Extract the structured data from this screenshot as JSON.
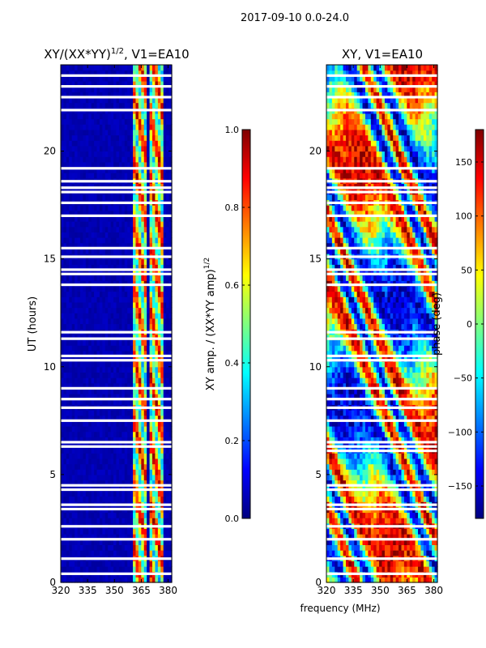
{
  "figure_title": "2017-09-10 0.0-24.0",
  "colors": {
    "jet_stops": [
      "#00007f",
      "#0000ff",
      "#007fff",
      "#00ffff",
      "#7fff7f",
      "#ffff00",
      "#ff7f00",
      "#ff0000",
      "#7f0000"
    ]
  },
  "chart_data": [
    {
      "type": "heatmap",
      "title_prefix": "XY/(XX*YY)",
      "title_exp": "1/2",
      "title_suffix": ", V1=EA10",
      "xlabel": "",
      "ylabel": "UT (hours)",
      "xlim": [
        320,
        382
      ],
      "ylim": [
        0,
        24
      ],
      "xticks": [
        320,
        335,
        350,
        365,
        380
      ],
      "yticks": [
        0,
        5,
        10,
        15,
        20
      ],
      "colorbar": {
        "label_prefix": "XY amp. / (XX*YY amp)",
        "label_exp": "1/2",
        "range": [
          0.0,
          1.0
        ],
        "ticks": [
          "0.0",
          "0.2",
          "0.4",
          "0.6",
          "0.8",
          "1.0"
        ]
      },
      "bright_channels_mhz": [
        [
          360,
          368
        ],
        [
          370,
          378
        ]
      ],
      "flagged_hours": [
        0.4,
        1.1,
        2.0,
        2.6,
        3.4,
        3.6,
        4.3,
        4.5,
        6.3,
        6.5,
        7.5,
        8.1,
        8.5,
        9.0,
        10.3,
        10.5,
        11.3,
        11.6,
        13.8,
        14.3,
        14.5,
        15.1,
        15.5,
        17.0,
        17.6,
        18.1,
        18.3,
        18.6,
        19.2,
        21.9,
        22.5,
        23.0,
        23.5
      ]
    },
    {
      "type": "heatmap",
      "title_prefix": "XY, V1=EA10",
      "title_exp": "",
      "title_suffix": "",
      "xlabel": "frequency (MHz)",
      "ylabel": "",
      "xlim": [
        320,
        382
      ],
      "ylim": [
        0,
        24
      ],
      "xticks": [
        320,
        335,
        350,
        365,
        380
      ],
      "yticks": [
        0,
        5,
        10,
        15,
        20
      ],
      "colorbar": {
        "label_prefix": "phase (deg)",
        "label_exp": "",
        "range": [
          -180,
          180
        ],
        "ticks": [
          "−150",
          "−100",
          "−50",
          "0",
          "50",
          "100",
          "150"
        ]
      },
      "bright_channels_mhz": [],
      "flagged_hours": [
        0.4,
        1.1,
        2.0,
        2.6,
        3.4,
        3.6,
        4.3,
        4.5,
        6.1,
        6.3,
        6.5,
        7.5,
        8.1,
        8.5,
        9.0,
        10.3,
        10.5,
        11.3,
        11.6,
        13.8,
        14.3,
        14.5,
        15.1,
        15.5,
        17.0,
        17.6,
        18.1,
        18.3,
        18.6,
        19.2,
        21.9,
        22.5,
        23.0,
        23.5
      ]
    }
  ]
}
